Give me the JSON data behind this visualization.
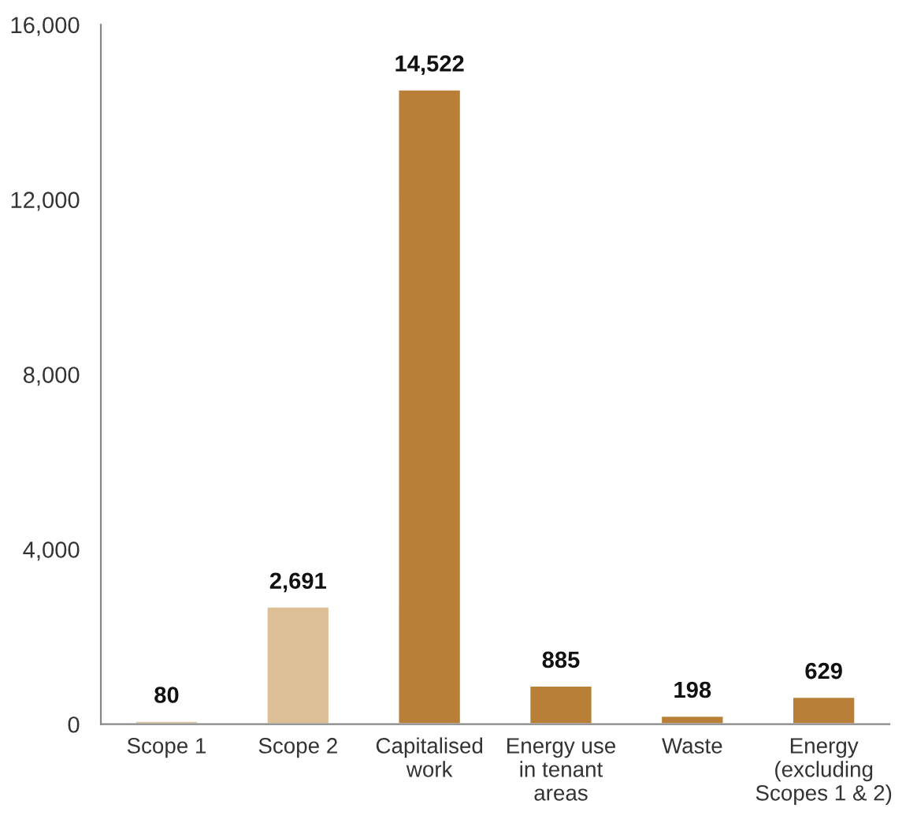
{
  "chart_data": {
    "type": "bar",
    "categories": [
      "Scope 1",
      "Scope 2",
      "Capitalised\nwork",
      "Energy use\nin tenant\nareas",
      "Waste",
      "Energy\n(excluding\nScopes 1 & 2)"
    ],
    "values": [
      80,
      2691,
      14522,
      885,
      198,
      629
    ],
    "colors": [
      "#dcbf96",
      "#dcbf96",
      "#b97f36",
      "#b97f36",
      "#b97f36",
      "#b97f36"
    ],
    "value_labels": [
      "80",
      "2,691",
      "14,522",
      "885",
      "198",
      "629"
    ],
    "ylim": [
      0,
      16000
    ],
    "yticks": [
      0,
      {
        "value": 4000,
        "label": "4,000"
      },
      {
        "value": 8000,
        "label": "8,000"
      },
      {
        "value": 12000,
        "label": "12,000"
      },
      {
        "value": 16000,
        "label": "16,000"
      }
    ],
    "grid": false
  }
}
